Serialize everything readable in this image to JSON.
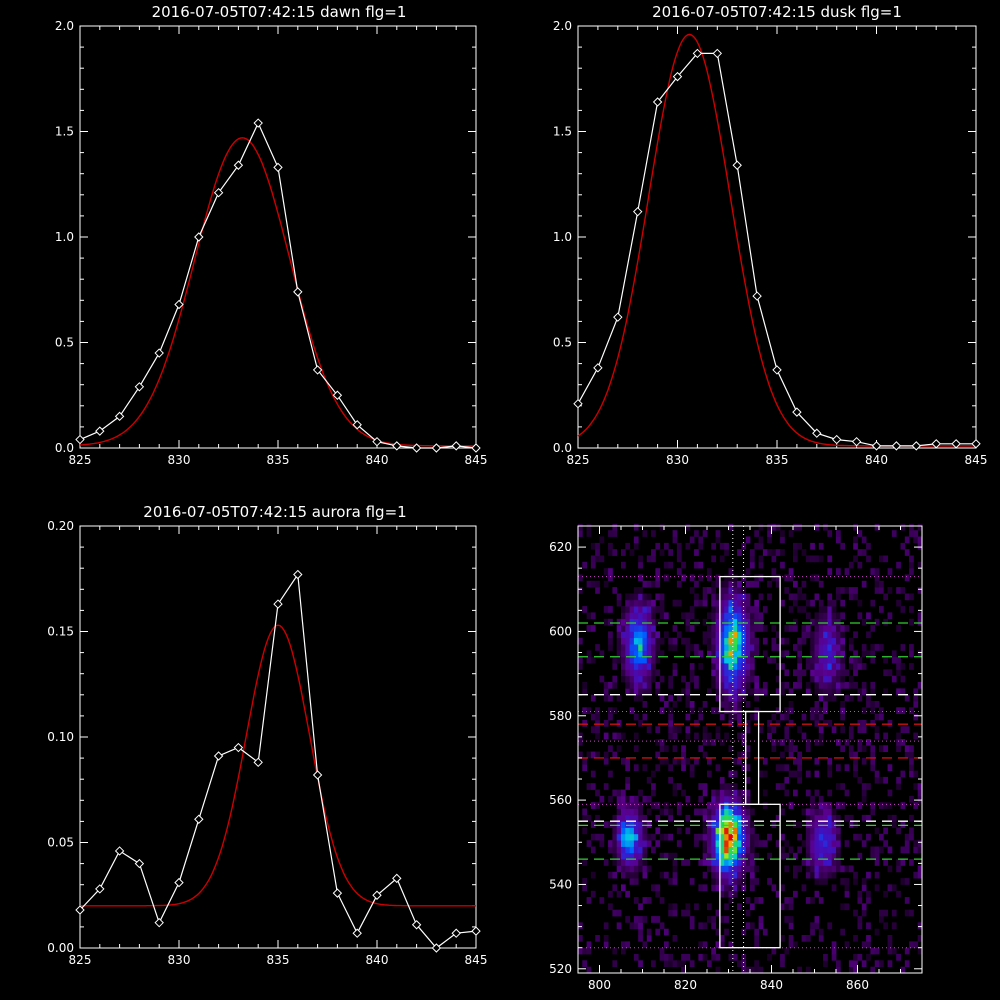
{
  "colors": {
    "background": "#000000",
    "axes": "#ffffff",
    "observed_line": "#ffffff",
    "fit_line": "#cc0000",
    "green_dash": "#33cc33",
    "red_dash": "#cc1111",
    "dotted_guides": "#cc44cc",
    "white_dash": "#ffffff"
  },
  "chart_data": [
    {
      "type": "line",
      "title": "2016-07-05T07:42:15 dawn flg=1",
      "xlim": [
        825,
        845
      ],
      "ylim": [
        0,
        2.0
      ],
      "xticks": [
        "825",
        "830",
        "835",
        "840",
        "845"
      ],
      "yticks": [
        "0.0",
        "0.5",
        "1.0",
        "1.5",
        "2.0"
      ],
      "series": [
        {
          "style": "observed",
          "marker": "diamond",
          "x": [
            825,
            826,
            827,
            828,
            829,
            830,
            831,
            832,
            833,
            834,
            835,
            836,
            837,
            838,
            839,
            840,
            841,
            842,
            843,
            844,
            845
          ],
          "y": [
            0.04,
            0.08,
            0.15,
            0.29,
            0.45,
            0.68,
            1.0,
            1.21,
            1.34,
            1.54,
            1.33,
            0.74,
            0.37,
            0.25,
            0.11,
            0.03,
            0.01,
            0.0,
            0.0,
            0.01,
            0.0
          ]
        },
        {
          "style": "fit",
          "gaussian": {
            "amplitude": 1.46,
            "center": 833.2,
            "sigma": 2.4,
            "offset": 0.01
          }
        }
      ]
    },
    {
      "type": "line",
      "title": "2016-07-05T07:42:15 dusk flg=1",
      "xlim": [
        825,
        845
      ],
      "ylim": [
        0,
        2.0
      ],
      "xticks": [
        "825",
        "830",
        "835",
        "840",
        "845"
      ],
      "yticks": [
        "0.0",
        "0.5",
        "1.0",
        "1.5",
        "2.0"
      ],
      "series": [
        {
          "style": "observed",
          "marker": "diamond",
          "x": [
            825,
            826,
            827,
            828,
            829,
            830,
            831,
            832,
            833,
            834,
            835,
            836,
            837,
            838,
            839,
            840,
            841,
            842,
            843,
            844,
            845
          ],
          "y": [
            0.21,
            0.38,
            0.62,
            1.12,
            1.64,
            1.76,
            1.87,
            1.87,
            1.34,
            0.72,
            0.37,
            0.17,
            0.07,
            0.04,
            0.03,
            0.01,
            0.01,
            0.01,
            0.02,
            0.02,
            0.02
          ]
        },
        {
          "style": "fit",
          "gaussian": {
            "amplitude": 1.95,
            "center": 830.6,
            "sigma": 2.05,
            "offset": 0.01
          }
        }
      ]
    },
    {
      "type": "line",
      "title": "2016-07-05T07:42:15 aurora flg=1",
      "xlim": [
        825,
        845
      ],
      "ylim": [
        0,
        0.2
      ],
      "xticks": [
        "825",
        "830",
        "835",
        "840",
        "845"
      ],
      "yticks": [
        "0.00",
        "0.05",
        "0.10",
        "0.15",
        "0.20"
      ],
      "series": [
        {
          "style": "observed",
          "marker": "diamond",
          "x": [
            825,
            826,
            827,
            828,
            829,
            830,
            831,
            832,
            833,
            834,
            835,
            836,
            837,
            838,
            839,
            840,
            841,
            842,
            843,
            844,
            845
          ],
          "y": [
            0.018,
            0.028,
            0.046,
            0.04,
            0.012,
            0.031,
            0.061,
            0.091,
            0.095,
            0.088,
            0.163,
            0.177,
            0.082,
            0.026,
            0.007,
            0.025,
            0.033,
            0.011,
            0.0,
            0.007,
            0.008
          ]
        },
        {
          "style": "fit",
          "gaussian": {
            "amplitude": 0.133,
            "center": 835.0,
            "sigma": 1.6,
            "offset": 0.02
          }
        }
      ]
    },
    {
      "type": "heatmap",
      "title": "",
      "xlim": [
        795,
        875
      ],
      "ylim": [
        519,
        625
      ],
      "xticks": [
        "800",
        "820",
        "840",
        "860"
      ],
      "yticks": [
        "520",
        "540",
        "560",
        "580",
        "600",
        "620"
      ],
      "blobs": [
        {
          "x": 809,
          "y": 597,
          "sx": 2.2,
          "sy": 6,
          "peak": 0.55
        },
        {
          "x": 831,
          "y": 597,
          "sx": 2.4,
          "sy": 7,
          "peak": 0.72
        },
        {
          "x": 853,
          "y": 595,
          "sx": 2.2,
          "sy": 6,
          "peak": 0.3
        },
        {
          "x": 807,
          "y": 551,
          "sx": 2.0,
          "sy": 4.5,
          "peak": 0.55
        },
        {
          "x": 830,
          "y": 551,
          "sx": 2.4,
          "sy": 5.5,
          "peak": 1.0
        },
        {
          "x": 852,
          "y": 550,
          "sx": 2.2,
          "sy": 5,
          "peak": 0.38
        }
      ],
      "boxes": [
        {
          "x": [
            828,
            842
          ],
          "y": [
            581,
            613
          ]
        },
        {
          "x": [
            828,
            842
          ],
          "y": [
            525,
            559
          ]
        }
      ],
      "connector_x": [
        834,
        837
      ],
      "connector_y": [
        559,
        581
      ],
      "vertical_dotted_x": [
        831,
        833.5
      ],
      "horizontal_dotted_y": [
        613,
        581,
        574,
        559,
        525
      ],
      "green_dashed_y": [
        602,
        594,
        554,
        546
      ],
      "white_dashed_y": [
        585,
        555
      ],
      "red_dashed_y": [
        578,
        570
      ]
    }
  ]
}
